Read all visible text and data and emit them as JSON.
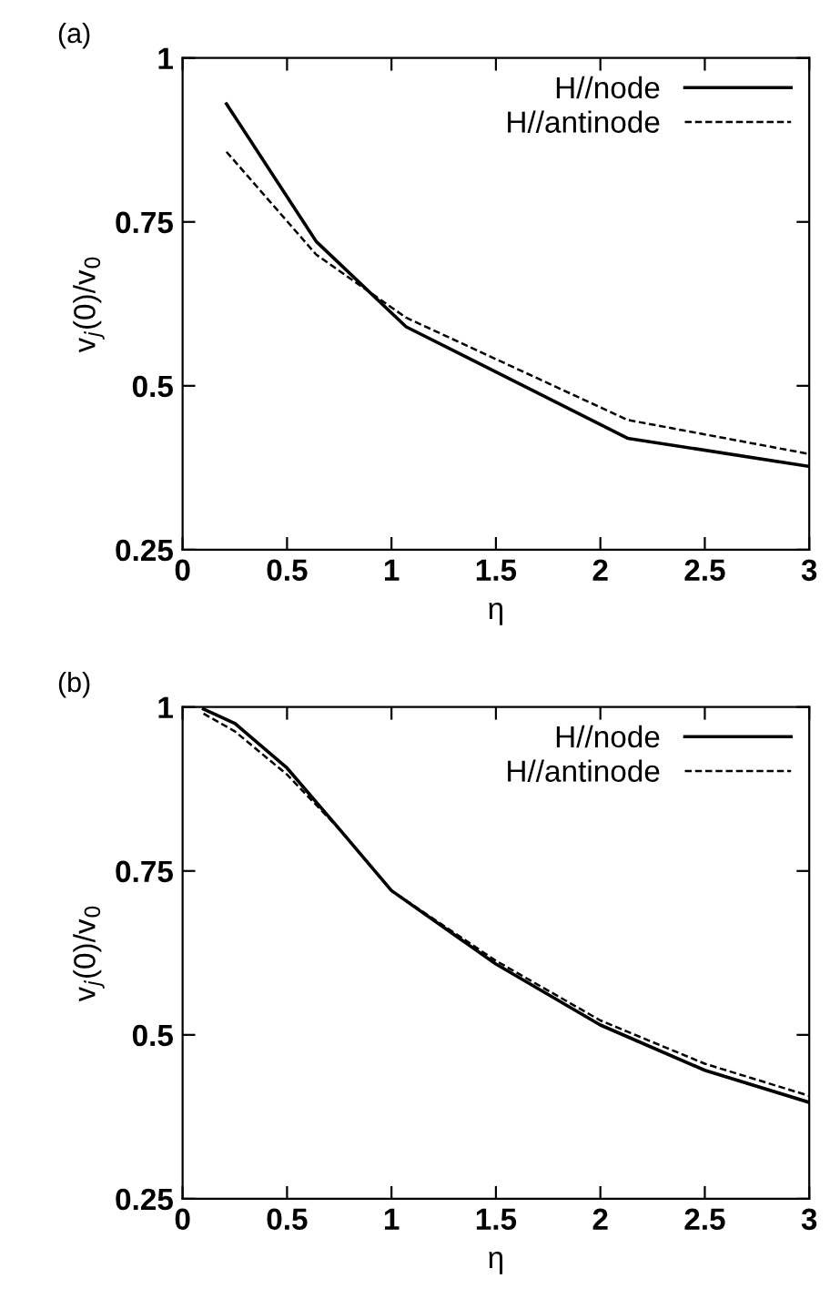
{
  "chart_data": [
    {
      "type": "line",
      "title": "(a)",
      "xlabel": "η",
      "ylabel": "v$_{j}$(0)/v$_{0}$",
      "xlim": [
        0,
        3
      ],
      "ylim": [
        0.25,
        1
      ],
      "xticks": [
        0,
        0.5,
        1,
        1.5,
        2,
        2.5,
        3
      ],
      "yticks": [
        0.25,
        0.5,
        0.75,
        1
      ],
      "legend": "top right",
      "grid": false,
      "series": [
        {
          "name": "H//node",
          "color": "#000000",
          "line_style": "solid",
          "x": [
            0.21,
            0.64,
            1.07,
            2.13,
            3
          ],
          "values": [
            0.93,
            0.72,
            0.59,
            0.42,
            0.377
          ]
        },
        {
          "name": "H//antinode",
          "color": "#000000",
          "line_style": "dashed",
          "x": [
            0.21,
            0.64,
            1.07,
            2.13,
            3
          ],
          "values": [
            0.857,
            0.7,
            0.604,
            0.448,
            0.396
          ]
        }
      ]
    },
    {
      "type": "line",
      "title": "(b)",
      "xlabel": "η",
      "ylabel": "v$_{j}$(0)/v$_{0}$",
      "xlim": [
        0,
        3
      ],
      "ylim": [
        0.25,
        1
      ],
      "xticks": [
        0,
        0.5,
        1,
        1.5,
        2,
        2.5,
        3
      ],
      "yticks": [
        0.25,
        0.5,
        0.75,
        1
      ],
      "legend": "top right",
      "grid": false,
      "series": [
        {
          "name": "H//node",
          "color": "#000000",
          "line_style": "solid",
          "x": [
            0.1,
            0.25,
            0.5,
            0.75,
            1,
            1.5,
            2,
            2.5,
            3
          ],
          "values": [
            0.997,
            0.975,
            0.907,
            0.814,
            0.72,
            0.608,
            0.515,
            0.446,
            0.397
          ]
        },
        {
          "name": "H//antinode",
          "color": "#000000",
          "line_style": "dashed",
          "x": [
            0.1,
            0.25,
            0.5,
            0.75,
            1,
            1.5,
            2,
            2.5,
            3
          ],
          "values": [
            0.99,
            0.963,
            0.897,
            0.814,
            0.72,
            0.613,
            0.522,
            0.456,
            0.407
          ]
        }
      ]
    }
  ]
}
